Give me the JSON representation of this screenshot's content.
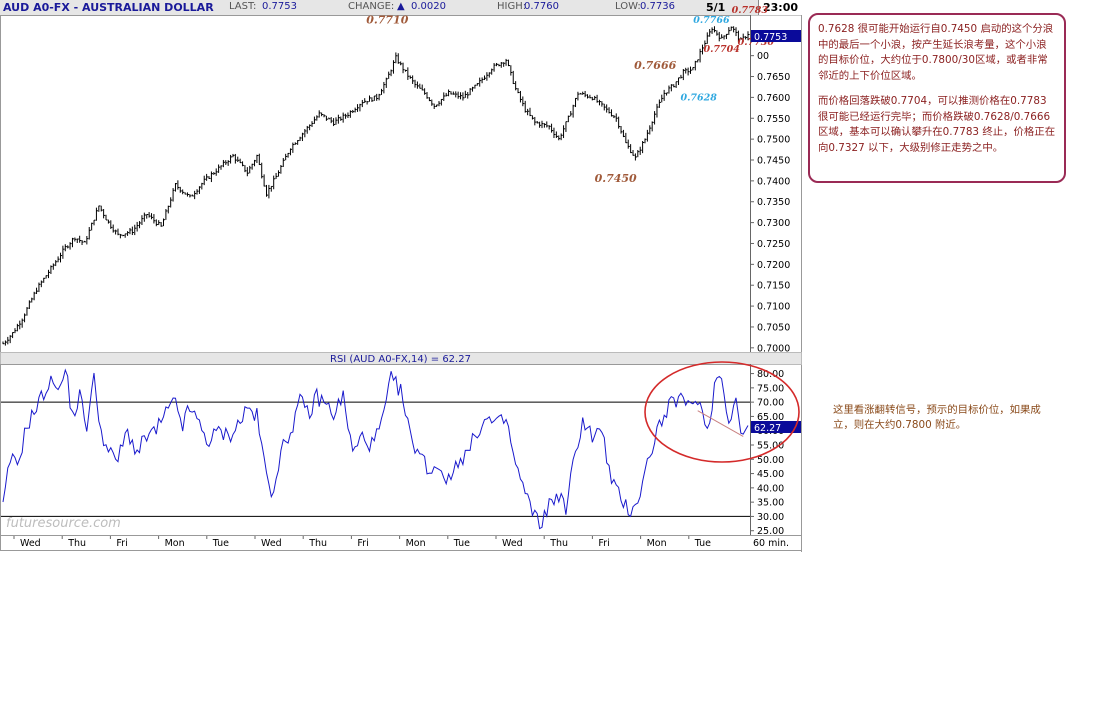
{
  "header": {
    "symbol": "AUD A0-FX - AUSTRALIAN DOLLAR",
    "last_label": "LAST:",
    "last_value": "0.7753",
    "change_label": "CHANGE:",
    "change_arrow": "▲",
    "change_value": "0.0020",
    "high_label": "HIGH:",
    "high_value": "0.7760",
    "low_label": "LOW:",
    "low_value": "0.7736",
    "date": "5/1",
    "time": "23:00"
  },
  "colors": {
    "price_line": "#000000",
    "rsi_line": "#1a1acc",
    "annotation_brown": "#a05a3a",
    "annotation_blue": "#2fa8e0",
    "annotation_red": "#b8302a",
    "circle": "#d42a2a",
    "last_box": "#0a0a9a",
    "note_border": "#9a2a55"
  },
  "chart_data": [
    {
      "type": "line",
      "title": "AUD A0-FX - AUSTRALIAN DOLLAR",
      "ylim": [
        0.699,
        0.7795
      ],
      "y_ticks": [
        0.7,
        0.705,
        0.71,
        0.715,
        0.72,
        0.725,
        0.73,
        0.735,
        0.74,
        0.745,
        0.75,
        0.755,
        0.76,
        0.765,
        0.77
      ],
      "y_tick_labels": [
        "0.7000",
        "0.7050",
        "0.7100",
        "0.7150",
        "0.7200",
        "0.7250",
        "0.7300",
        "0.7350",
        "0.7400",
        "0.7450",
        "0.7500",
        "0.7550",
        "0.7600",
        "0.7650",
        "00"
      ],
      "interval": "60 min.",
      "x_day_labels": [
        "Wed",
        "Thu",
        "Fri",
        "Mon",
        "Tue",
        "Wed",
        "Thu",
        "Fri",
        "Mon",
        "Tue",
        "Wed",
        "Thu",
        "Fri",
        "Mon",
        "Tue"
      ],
      "last_value_label": "0.7753",
      "anchors": [
        {
          "bar": 0,
          "price": 0.701
        },
        {
          "bar": 4,
          "price": 0.7035
        },
        {
          "bar": 8,
          "price": 0.707
        },
        {
          "bar": 14,
          "price": 0.714
        },
        {
          "bar": 20,
          "price": 0.719
        },
        {
          "bar": 26,
          "price": 0.724
        },
        {
          "bar": 30,
          "price": 0.7265
        },
        {
          "bar": 34,
          "price": 0.725
        },
        {
          "bar": 40,
          "price": 0.734
        },
        {
          "bar": 44,
          "price": 0.73
        },
        {
          "bar": 48,
          "price": 0.727
        },
        {
          "bar": 54,
          "price": 0.728
        },
        {
          "bar": 60,
          "price": 0.732
        },
        {
          "bar": 66,
          "price": 0.729
        },
        {
          "bar": 72,
          "price": 0.739
        },
        {
          "bar": 78,
          "price": 0.736
        },
        {
          "bar": 84,
          "price": 0.74
        },
        {
          "bar": 90,
          "price": 0.743
        },
        {
          "bar": 96,
          "price": 0.746
        },
        {
          "bar": 102,
          "price": 0.742
        },
        {
          "bar": 106,
          "price": 0.746
        },
        {
          "bar": 110,
          "price": 0.737
        },
        {
          "bar": 114,
          "price": 0.741
        },
        {
          "bar": 120,
          "price": 0.748
        },
        {
          "bar": 126,
          "price": 0.752
        },
        {
          "bar": 132,
          "price": 0.756
        },
        {
          "bar": 138,
          "price": 0.754
        },
        {
          "bar": 144,
          "price": 0.756
        },
        {
          "bar": 150,
          "price": 0.759
        },
        {
          "bar": 156,
          "price": 0.76
        },
        {
          "bar": 160,
          "price": 0.764
        },
        {
          "bar": 164,
          "price": 0.7695
        },
        {
          "bar": 168,
          "price": 0.766
        },
        {
          "bar": 172,
          "price": 0.763
        },
        {
          "bar": 176,
          "price": 0.761
        },
        {
          "bar": 180,
          "price": 0.758
        },
        {
          "bar": 186,
          "price": 0.761
        },
        {
          "bar": 192,
          "price": 0.76
        },
        {
          "bar": 198,
          "price": 0.763
        },
        {
          "bar": 204,
          "price": 0.767
        },
        {
          "bar": 210,
          "price": 0.769
        },
        {
          "bar": 214,
          "price": 0.762
        },
        {
          "bar": 218,
          "price": 0.757
        },
        {
          "bar": 222,
          "price": 0.754
        },
        {
          "bar": 228,
          "price": 0.753
        },
        {
          "bar": 232,
          "price": 0.75
        },
        {
          "bar": 236,
          "price": 0.755
        },
        {
          "bar": 240,
          "price": 0.761
        },
        {
          "bar": 246,
          "price": 0.76
        },
        {
          "bar": 252,
          "price": 0.757
        },
        {
          "bar": 256,
          "price": 0.755
        },
        {
          "bar": 260,
          "price": 0.749
        },
        {
          "bar": 264,
          "price": 0.7455
        },
        {
          "bar": 268,
          "price": 0.75
        },
        {
          "bar": 272,
          "price": 0.756
        },
        {
          "bar": 276,
          "price": 0.761
        },
        {
          "bar": 280,
          "price": 0.763
        },
        {
          "bar": 284,
          "price": 0.766
        },
        {
          "bar": 288,
          "price": 0.7668
        },
        {
          "bar": 292,
          "price": 0.772
        },
        {
          "bar": 296,
          "price": 0.7766
        },
        {
          "bar": 300,
          "price": 0.774
        },
        {
          "bar": 304,
          "price": 0.777
        },
        {
          "bar": 308,
          "price": 0.7735
        },
        {
          "bar": 311,
          "price": 0.7753
        }
      ],
      "annotations": [
        {
          "text": "0.7710",
          "bar": 165,
          "price": 0.771,
          "color": "brown"
        },
        {
          "text": "0.7666",
          "bar": 276,
          "price": 0.7666,
          "color": "brown"
        },
        {
          "text": "0.7766",
          "bar": 294,
          "price": 0.7766,
          "color": "blue"
        },
        {
          "text": "0.7783",
          "bar": 305,
          "price": 0.7783,
          "color": "red"
        },
        {
          "text": "0.7730",
          "bar": 310,
          "price": 0.773,
          "color": "red"
        },
        {
          "text": "0.7704",
          "bar": 297,
          "price": 0.7704,
          "color": "red"
        },
        {
          "text": "0.7628",
          "bar": 287,
          "price": 0.7628,
          "color": "blue"
        },
        {
          "text": "0.7450",
          "bar": 262,
          "price": 0.745,
          "color": "brown"
        }
      ]
    },
    {
      "type": "line",
      "title": "RSI (AUD A0-FX,14) = 62.27",
      "ylim": [
        23.5,
        83.0
      ],
      "y_ticks": [
        25,
        30,
        35,
        40,
        45,
        50,
        55,
        60,
        65,
        70,
        75,
        80
      ],
      "y_tick_labels": [
        "25.00",
        "30.00",
        "35.00",
        "40.00",
        "45.00",
        "50.00",
        "55.00",
        "60.00",
        "65.00",
        "70.00",
        "75.00",
        "80.00"
      ],
      "reference_lines": [
        30,
        70
      ],
      "last_value_label": "62.27",
      "anchors": [
        {
          "bar": 0,
          "value": 33
        },
        {
          "bar": 3,
          "value": 50
        },
        {
          "bar": 6,
          "value": 48
        },
        {
          "bar": 10,
          "value": 62
        },
        {
          "bar": 14,
          "value": 68
        },
        {
          "bar": 18,
          "value": 75
        },
        {
          "bar": 22,
          "value": 78
        },
        {
          "bar": 24,
          "value": 74
        },
        {
          "bar": 26,
          "value": 82
        },
        {
          "bar": 29,
          "value": 65
        },
        {
          "bar": 32,
          "value": 72
        },
        {
          "bar": 35,
          "value": 62
        },
        {
          "bar": 38,
          "value": 78
        },
        {
          "bar": 41,
          "value": 60
        },
        {
          "bar": 44,
          "value": 52
        },
        {
          "bar": 48,
          "value": 50
        },
        {
          "bar": 52,
          "value": 60
        },
        {
          "bar": 56,
          "value": 52
        },
        {
          "bar": 60,
          "value": 58
        },
        {
          "bar": 64,
          "value": 60
        },
        {
          "bar": 68,
          "value": 66
        },
        {
          "bar": 72,
          "value": 70
        },
        {
          "bar": 75,
          "value": 62
        },
        {
          "bar": 78,
          "value": 68
        },
        {
          "bar": 82,
          "value": 62
        },
        {
          "bar": 86,
          "value": 56
        },
        {
          "bar": 90,
          "value": 60
        },
        {
          "bar": 94,
          "value": 58
        },
        {
          "bar": 98,
          "value": 62
        },
        {
          "bar": 102,
          "value": 68
        },
        {
          "bar": 106,
          "value": 65
        },
        {
          "bar": 110,
          "value": 44
        },
        {
          "bar": 112,
          "value": 38
        },
        {
          "bar": 116,
          "value": 52
        },
        {
          "bar": 120,
          "value": 60
        },
        {
          "bar": 124,
          "value": 70
        },
        {
          "bar": 128,
          "value": 66
        },
        {
          "bar": 131,
          "value": 72
        },
        {
          "bar": 134,
          "value": 70
        },
        {
          "bar": 138,
          "value": 66
        },
        {
          "bar": 142,
          "value": 72
        },
        {
          "bar": 146,
          "value": 52
        },
        {
          "bar": 150,
          "value": 58
        },
        {
          "bar": 154,
          "value": 55
        },
        {
          "bar": 158,
          "value": 62
        },
        {
          "bar": 162,
          "value": 78
        },
        {
          "bar": 166,
          "value": 74
        },
        {
          "bar": 170,
          "value": 58
        },
        {
          "bar": 174,
          "value": 52
        },
        {
          "bar": 178,
          "value": 46
        },
        {
          "bar": 182,
          "value": 48
        },
        {
          "bar": 186,
          "value": 42
        },
        {
          "bar": 190,
          "value": 50
        },
        {
          "bar": 194,
          "value": 52
        },
        {
          "bar": 198,
          "value": 60
        },
        {
          "bar": 202,
          "value": 64
        },
        {
          "bar": 206,
          "value": 62
        },
        {
          "bar": 210,
          "value": 64
        },
        {
          "bar": 214,
          "value": 48
        },
        {
          "bar": 218,
          "value": 38
        },
        {
          "bar": 222,
          "value": 30
        },
        {
          "bar": 224,
          "value": 27
        },
        {
          "bar": 228,
          "value": 34
        },
        {
          "bar": 232,
          "value": 38
        },
        {
          "bar": 235,
          "value": 32
        },
        {
          "bar": 238,
          "value": 48
        },
        {
          "bar": 242,
          "value": 64
        },
        {
          "bar": 246,
          "value": 58
        },
        {
          "bar": 250,
          "value": 60
        },
        {
          "bar": 254,
          "value": 42
        },
        {
          "bar": 258,
          "value": 36
        },
        {
          "bar": 262,
          "value": 32
        },
        {
          "bar": 266,
          "value": 38
        },
        {
          "bar": 270,
          "value": 52
        },
        {
          "bar": 274,
          "value": 62
        },
        {
          "bar": 278,
          "value": 68
        },
        {
          "bar": 282,
          "value": 72
        },
        {
          "bar": 286,
          "value": 68
        },
        {
          "bar": 290,
          "value": 72
        },
        {
          "bar": 294,
          "value": 60
        },
        {
          "bar": 298,
          "value": 80
        },
        {
          "bar": 300,
          "value": 78
        },
        {
          "bar": 303,
          "value": 64
        },
        {
          "bar": 306,
          "value": 72
        },
        {
          "bar": 308,
          "value": 58
        },
        {
          "bar": 311,
          "value": 62.27
        }
      ],
      "divergence_line": [
        {
          "bar": 290,
          "value": 67
        },
        {
          "bar": 309,
          "value": 58
        }
      ]
    }
  ],
  "notes": {
    "note1": [
      "0.7628 很可能开始运行自0.7450 启动的这个分浪中的最后一个小浪，按产生延长浪考量，这个小浪的目标价位，大约位于0.7800/30区域，或者非常邻近的上下价位区域。",
      "而价格回落跌破0.7704，可以推测价格在0.7783 很可能已经运行完毕；而价格跌破0.7628/0.7666区域，基本可以确认攀升在0.7783 终止，价格正在向0.7327 以下，大级别修正走势之中。"
    ],
    "note2": "这里看涨翻转信号，预示的目标价位，如果成立，则在大约0.7800 附近。"
  },
  "watermark": "futuresource.com"
}
